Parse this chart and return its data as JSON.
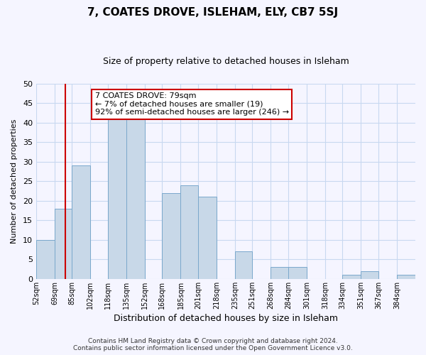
{
  "title": "7, COATES DROVE, ISLEHAM, ELY, CB7 5SJ",
  "subtitle": "Size of property relative to detached houses in Isleham",
  "xlabel": "Distribution of detached houses by size in Isleham",
  "ylabel": "Number of detached properties",
  "bin_labels": [
    "52sqm",
    "69sqm",
    "85sqm",
    "102sqm",
    "118sqm",
    "135sqm",
    "152sqm",
    "168sqm",
    "185sqm",
    "201sqm",
    "218sqm",
    "235sqm",
    "251sqm",
    "268sqm",
    "284sqm",
    "301sqm",
    "318sqm",
    "334sqm",
    "351sqm",
    "367sqm",
    "384sqm"
  ],
  "bin_edges": [
    52,
    69,
    85,
    102,
    118,
    135,
    152,
    168,
    185,
    201,
    218,
    235,
    251,
    268,
    284,
    301,
    318,
    334,
    351,
    367,
    384
  ],
  "bar_heights": [
    10,
    18,
    29,
    0,
    41,
    41,
    0,
    22,
    24,
    21,
    0,
    7,
    0,
    3,
    3,
    0,
    0,
    1,
    2,
    0,
    1
  ],
  "bar_color": "#c8d8e8",
  "bar_edge_color": "#7aa8cc",
  "property_line_x": 79,
  "property_line_color": "#cc0000",
  "ylim": [
    0,
    50
  ],
  "yticks": [
    0,
    5,
    10,
    15,
    20,
    25,
    30,
    35,
    40,
    45,
    50
  ],
  "annotation_title": "7 COATES DROVE: 79sqm",
  "annotation_line1": "← 7% of detached houses are smaller (19)",
  "annotation_line2": "92% of semi-detached houses are larger (246) →",
  "footer_line1": "Contains HM Land Registry data © Crown copyright and database right 2024.",
  "footer_line2": "Contains public sector information licensed under the Open Government Licence v3.0.",
  "bg_color": "#f5f5ff",
  "grid_color": "#c8d8f0",
  "title_fontsize": 11,
  "subtitle_fontsize": 9,
  "xlabel_fontsize": 9,
  "ylabel_fontsize": 8,
  "tick_fontsize": 7,
  "footer_fontsize": 6.5,
  "annot_fontsize": 8
}
